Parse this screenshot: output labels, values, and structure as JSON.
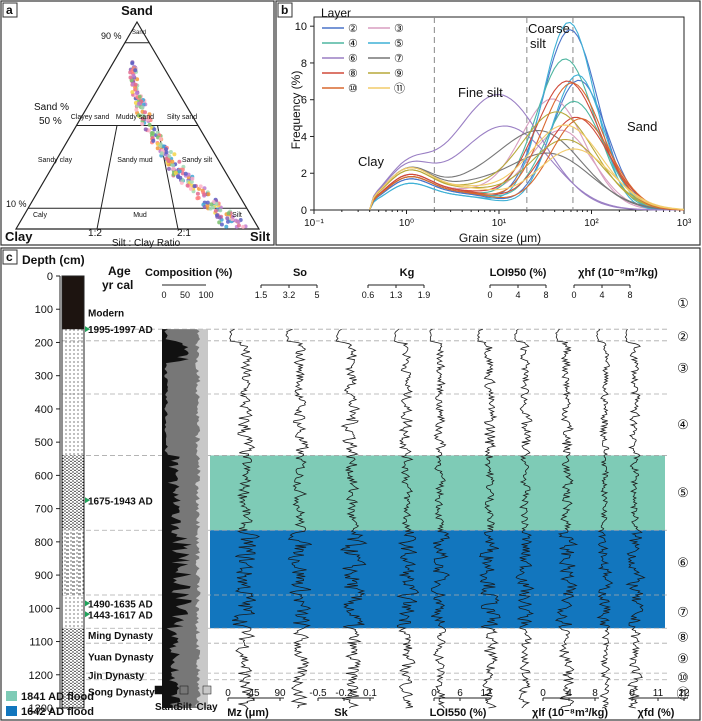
{
  "panel_labels": {
    "a": "a",
    "b": "b",
    "c": "c"
  },
  "ternary": {
    "vertices": {
      "top": "Sand",
      "left": "Clay",
      "right": "Silt"
    },
    "left_ticks": [
      "90 %",
      "Sand %",
      "50 %",
      "10 %"
    ],
    "field_labels": [
      "Sand",
      "Clayey sand",
      "Muddy sand",
      "Silty sand",
      "Sandy clay",
      "Sandy mud",
      "Sandy silt",
      "Caly",
      "Mud",
      "Silt"
    ],
    "ratio_ticks": [
      "1:2",
      "2:1"
    ],
    "bottom_label": "Silt : Clay Ratio"
  },
  "chart_data": [
    {
      "type": "scatter",
      "title": "",
      "vertices": [
        "Sand",
        "Clay",
        "Silt"
      ],
      "x": [],
      "note": ""
    },
    {
      "type": "line",
      "xlabel": "Grain size (μm)",
      "ylabel": "Frequency (%)",
      "xscale": "log",
      "xlim": [
        0.1,
        1000
      ],
      "ylim": [
        0,
        10.5
      ],
      "xticks": [
        "10⁻¹",
        "10⁰",
        "10¹",
        "10²",
        "10³"
      ],
      "yticks": [
        "0",
        "2",
        "4",
        "6",
        "8",
        "10"
      ],
      "legend_title": "Layer",
      "legend": [
        "②",
        "③",
        "④",
        "⑤",
        "⑥",
        "⑦",
        "⑧",
        "⑨",
        "⑩",
        "⑪"
      ],
      "annotations": [
        "Clay",
        "Fine silt",
        "Coarse",
        "silt",
        "Sand"
      ]
    },
    {
      "type": "line",
      "ylabel": "Depth (cm)",
      "ylim": [
        0,
        1300
      ],
      "yticks": [
        "0",
        "100",
        "200",
        "300",
        "400",
        "500",
        "600",
        "700",
        "800",
        "900",
        "1000",
        "1100",
        "1200",
        "1300"
      ],
      "age_header": [
        "Age",
        "yr cal"
      ],
      "ages": [
        "Modern",
        "1995-1997 AD",
        "1675-1943 AD",
        "1490-1635 AD",
        "1443-1617 AD",
        "Ming Dynasty",
        "Yuan Dynasty",
        "Jin Dynasty",
        "Song Dynasty"
      ],
      "top_headers": [
        "Composition (%)",
        "So",
        "Kg",
        "LOI950 (%)",
        "χhf (10⁻⁸m³/kg)"
      ],
      "composition_ticks": [
        "0",
        "50",
        "100"
      ],
      "so_ticks": [
        "1.5",
        "3.2",
        "5"
      ],
      "kg_ticks": [
        "0.6",
        "1.3",
        "1.9"
      ],
      "loi950_ticks": [
        "0",
        "4",
        "8"
      ],
      "xhf_ticks": [
        "0",
        "4",
        "8"
      ],
      "bottom_headers": [
        "Mz (μm)",
        "Sk",
        "LOI550 (%)",
        "χlf (10⁻⁸m³/kg)",
        "χfd (%)"
      ],
      "mz_ticks": [
        "0",
        "45",
        "90"
      ],
      "sk_ticks": [
        "-0.5",
        "-0.2",
        "0.1"
      ],
      "loi550_ticks": [
        "0",
        "6",
        "12"
      ],
      "xlf_ticks": [
        "0",
        "4",
        "8"
      ],
      "xfd_ticks": [
        "0",
        "11",
        "22"
      ],
      "composition_legend": [
        "Sand",
        "Silt",
        "Clay"
      ],
      "layer_labels": [
        "①",
        "②",
        "③",
        "④",
        "⑤",
        "⑥",
        "⑦",
        "⑧",
        "⑨",
        "⑩",
        "⑪"
      ],
      "layer_boundaries_cm": [
        160,
        195,
        355,
        540,
        765,
        960,
        1060,
        1105,
        1195,
        1215,
        1300
      ],
      "flood_bands": [
        {
          "label": "1841 AD flood",
          "from_cm": 540,
          "to_cm": 765,
          "color": "#7ecbb6"
        },
        {
          "label": "1642 AD flood",
          "from_cm": 765,
          "to_cm": 1060,
          "color": "#1276be"
        }
      ]
    }
  ]
}
